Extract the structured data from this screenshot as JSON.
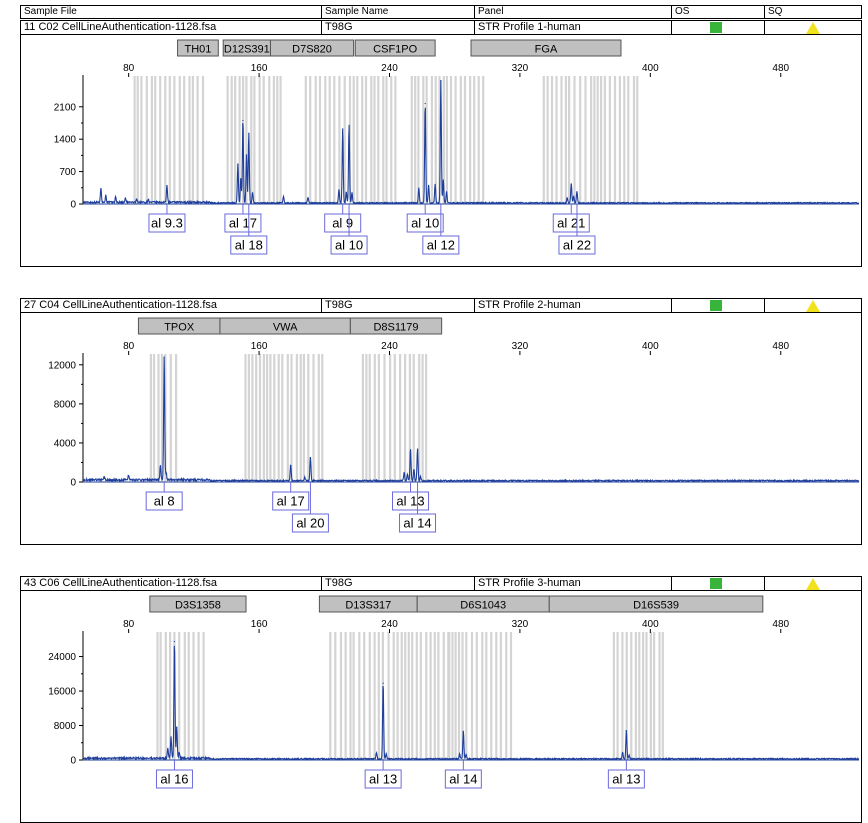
{
  "header": {
    "col_sample_file": "Sample File",
    "col_sample_name": "Sample Name",
    "col_panel": "Panel",
    "col_os": "OS",
    "col_sq": "SQ"
  },
  "colors": {
    "trace": "#1f3f9c",
    "bin": "#d4d4d4",
    "marker_fill": "#c0c0c0",
    "os_ok": "#39b43a",
    "sq_warn": "#f2e21e",
    "label_border": "#6a6adb"
  },
  "chart_data": [
    {
      "type": "line",
      "sample_file": "11  C02  CellLineAuthentication-1128.fsa",
      "sample_name": "T98G",
      "panel": "STR Profile 1-human",
      "x_ticks": [
        80,
        160,
        240,
        320,
        400,
        480
      ],
      "xlim": [
        52,
        528
      ],
      "y_ticks": [
        0,
        700,
        1400,
        2100
      ],
      "ylim": [
        0,
        2700
      ],
      "markers": [
        {
          "name": "TH01",
          "start": 110,
          "end": 135
        },
        {
          "name": "D12S391",
          "start": 138,
          "end": 167
        },
        {
          "name": "D7S820",
          "start": 167,
          "end": 218
        },
        {
          "name": "CSF1PO",
          "start": 219,
          "end": 268
        },
        {
          "name": "FGA",
          "start": 290,
          "end": 382
        }
      ],
      "bin_ranges": [
        [
          83,
          126
        ],
        [
          140,
          175
        ],
        [
          188,
          243
        ],
        [
          253,
          298
        ],
        [
          334,
          394
        ]
      ],
      "alleles": [
        {
          "label": "al 9.3",
          "x": 103.5,
          "row": 1
        },
        {
          "label": "al 17",
          "x": 150.1,
          "row": 1
        },
        {
          "label": "al 18",
          "x": 153.7,
          "row": 2
        },
        {
          "label": "al 9",
          "x": 211.3,
          "row": 1
        },
        {
          "label": "al 10",
          "x": 215.2,
          "row": 2
        },
        {
          "label": "al 10",
          "x": 261.9,
          "row": 1
        },
        {
          "label": "al 12",
          "x": 271.5,
          "row": 2
        },
        {
          "label": "al 21",
          "x": 351.5,
          "row": 1
        },
        {
          "label": "al 22",
          "x": 355.0,
          "row": 2
        }
      ],
      "peaks": [
        {
          "x": 63,
          "h": 320
        },
        {
          "x": 66,
          "h": 150
        },
        {
          "x": 72,
          "h": 110
        },
        {
          "x": 78,
          "h": 90
        },
        {
          "x": 85,
          "h": 80
        },
        {
          "x": 92,
          "h": 70
        },
        {
          "x": 103.5,
          "h": 370
        },
        {
          "x": 147,
          "h": 850
        },
        {
          "x": 148.8,
          "h": 540
        },
        {
          "x": 150.1,
          "h": 1800
        },
        {
          "x": 152.3,
          "h": 1050
        },
        {
          "x": 153.7,
          "h": 1530
        },
        {
          "x": 156,
          "h": 230
        },
        {
          "x": 175,
          "h": 140
        },
        {
          "x": 190,
          "h": 120
        },
        {
          "x": 209,
          "h": 300
        },
        {
          "x": 211.3,
          "h": 1620
        },
        {
          "x": 213.5,
          "h": 250
        },
        {
          "x": 215.2,
          "h": 1700
        },
        {
          "x": 217,
          "h": 230
        },
        {
          "x": 258,
          "h": 320
        },
        {
          "x": 261.9,
          "h": 2170
        },
        {
          "x": 264,
          "h": 380
        },
        {
          "x": 268,
          "h": 420
        },
        {
          "x": 271.5,
          "h": 2650
        },
        {
          "x": 273,
          "h": 500
        },
        {
          "x": 275,
          "h": 240
        },
        {
          "x": 349,
          "h": 110
        },
        {
          "x": 351.5,
          "h": 420
        },
        {
          "x": 353,
          "h": 150
        },
        {
          "x": 355,
          "h": 260
        }
      ],
      "noise": 35
    },
    {
      "type": "line",
      "sample_file": "27  C04  CellLineAuthentication-1128.fsa",
      "sample_name": "T98G",
      "panel": "STR Profile 2-human",
      "x_ticks": [
        80,
        160,
        240,
        320,
        400,
        480
      ],
      "xlim": [
        52,
        528
      ],
      "y_ticks": [
        0,
        4000,
        8000,
        12000
      ],
      "ylim": [
        0,
        12800
      ],
      "markers": [
        {
          "name": "TPOX",
          "start": 86,
          "end": 136
        },
        {
          "name": "VWA",
          "start": 136,
          "end": 216
        },
        {
          "name": "D8S1179",
          "start": 216,
          "end": 272
        }
      ],
      "bin_ranges": [
        [
          93,
          110
        ],
        [
          151,
          201
        ],
        [
          223,
          263
        ]
      ],
      "alleles": [
        {
          "label": "al 8",
          "x": 101.8,
          "row": 1
        },
        {
          "label": "al 17",
          "x": 179.4,
          "row": 1
        },
        {
          "label": "al 20",
          "x": 191.5,
          "row": 2
        },
        {
          "label": "al 13",
          "x": 252.9,
          "row": 1
        },
        {
          "label": "al 14",
          "x": 257.2,
          "row": 2
        }
      ],
      "peaks": [
        {
          "x": 65,
          "h": 350
        },
        {
          "x": 80,
          "h": 550
        },
        {
          "x": 99.5,
          "h": 1500
        },
        {
          "x": 101.8,
          "h": 12800
        },
        {
          "x": 103,
          "h": 800
        },
        {
          "x": 179.4,
          "h": 1700
        },
        {
          "x": 188,
          "h": 350
        },
        {
          "x": 191.5,
          "h": 2450
        },
        {
          "x": 249,
          "h": 900
        },
        {
          "x": 251,
          "h": 700
        },
        {
          "x": 252.9,
          "h": 3300
        },
        {
          "x": 255,
          "h": 1200
        },
        {
          "x": 257.2,
          "h": 3300
        },
        {
          "x": 259,
          "h": 400
        }
      ],
      "noise": 200
    },
    {
      "type": "line",
      "sample_file": "43  C06  CellLineAuthentication-1128.fsa",
      "sample_name": "T98G",
      "panel": "STR Profile 3-human",
      "x_ticks": [
        80,
        160,
        240,
        320,
        400,
        480
      ],
      "xlim": [
        52,
        528
      ],
      "y_ticks": [
        0,
        8000,
        16000,
        24000
      ],
      "ylim": [
        0,
        29000
      ],
      "markers": [
        {
          "name": "D3S1358",
          "start": 93,
          "end": 152
        },
        {
          "name": "D13S317",
          "start": 197,
          "end": 257
        },
        {
          "name": "D6S1043",
          "start": 257,
          "end": 338
        },
        {
          "name": "D16S539",
          "start": 338,
          "end": 469
        }
      ],
      "bin_ranges": [
        [
          97,
          128
        ],
        [
          203,
          276
        ],
        [
          276,
          315
        ],
        [
          377,
          408
        ]
      ],
      "alleles": [
        {
          "label": "al 16",
          "x": 108.1,
          "row": 1
        },
        {
          "label": "al 13",
          "x": 236.1,
          "row": 1
        },
        {
          "label": "al 14",
          "x": 285.3,
          "row": 1
        },
        {
          "label": "al 13",
          "x": 385.3,
          "row": 1
        }
      ],
      "peaks": [
        {
          "x": 104,
          "h": 2200
        },
        {
          "x": 106,
          "h": 5000
        },
        {
          "x": 108.1,
          "h": 27500
        },
        {
          "x": 109.5,
          "h": 7500
        },
        {
          "x": 111,
          "h": 1500
        },
        {
          "x": 232,
          "h": 1500
        },
        {
          "x": 236.1,
          "h": 17800
        },
        {
          "x": 238,
          "h": 1200
        },
        {
          "x": 283,
          "h": 1200
        },
        {
          "x": 285.3,
          "h": 6500
        },
        {
          "x": 287,
          "h": 1000
        },
        {
          "x": 383,
          "h": 1500
        },
        {
          "x": 385.3,
          "h": 6700
        },
        {
          "x": 387,
          "h": 800
        }
      ],
      "noise": 400
    }
  ]
}
